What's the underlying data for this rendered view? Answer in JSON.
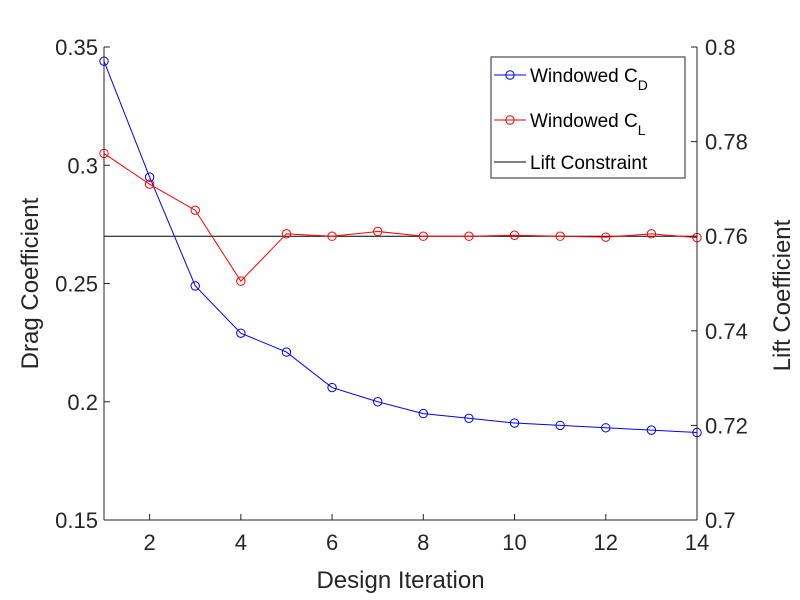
{
  "chart_data": {
    "type": "line",
    "xlabel": "Design Iteration",
    "ylabel_left": "Drag Coefficient",
    "ylabel_right": "Lift Coefficient",
    "xlim": [
      1,
      14
    ],
    "ylim_left": [
      0.15,
      0.35
    ],
    "ylim_right": [
      0.7,
      0.8
    ],
    "x_ticks": [
      2,
      4,
      6,
      8,
      10,
      12,
      14
    ],
    "x_tick_labels": [
      "2",
      "4",
      "6",
      "8",
      "10",
      "12",
      "14"
    ],
    "y_left_ticks": [
      0.15,
      0.2,
      0.25,
      0.3,
      0.35
    ],
    "y_left_tick_labels": [
      "0.15",
      "0.2",
      "0.25",
      "0.3",
      "0.35"
    ],
    "y_right_ticks": [
      0.7,
      0.72,
      0.74,
      0.76,
      0.78,
      0.8
    ],
    "y_right_tick_labels": [
      "0.7",
      "0.72",
      "0.74",
      "0.76",
      "0.78",
      "0.8"
    ],
    "grid": false,
    "legend_position": "top-right",
    "x": [
      1,
      2,
      3,
      4,
      5,
      6,
      7,
      8,
      9,
      10,
      11,
      12,
      13,
      14
    ],
    "series": [
      {
        "name_main": "Windowed C",
        "name_sub": "D",
        "axis": "left",
        "color": "#0000ff",
        "marker": "circle",
        "values": [
          0.344,
          0.295,
          0.249,
          0.229,
          0.221,
          0.206,
          0.2,
          0.195,
          0.193,
          0.191,
          0.19,
          0.189,
          0.188,
          0.187
        ]
      },
      {
        "name_main": "Windowed C",
        "name_sub": "L",
        "axis": "right",
        "color": "#ff0000",
        "marker": "circle",
        "values": [
          0.7775,
          0.771,
          0.7655,
          0.7505,
          0.7605,
          0.76,
          0.761,
          0.76,
          0.76,
          0.7602,
          0.76,
          0.7598,
          0.7605,
          0.7597
        ]
      },
      {
        "name_main": "Lift Constraint",
        "name_sub": "",
        "axis": "right",
        "color": "#000000",
        "marker": "none",
        "constant": 0.76
      }
    ]
  }
}
